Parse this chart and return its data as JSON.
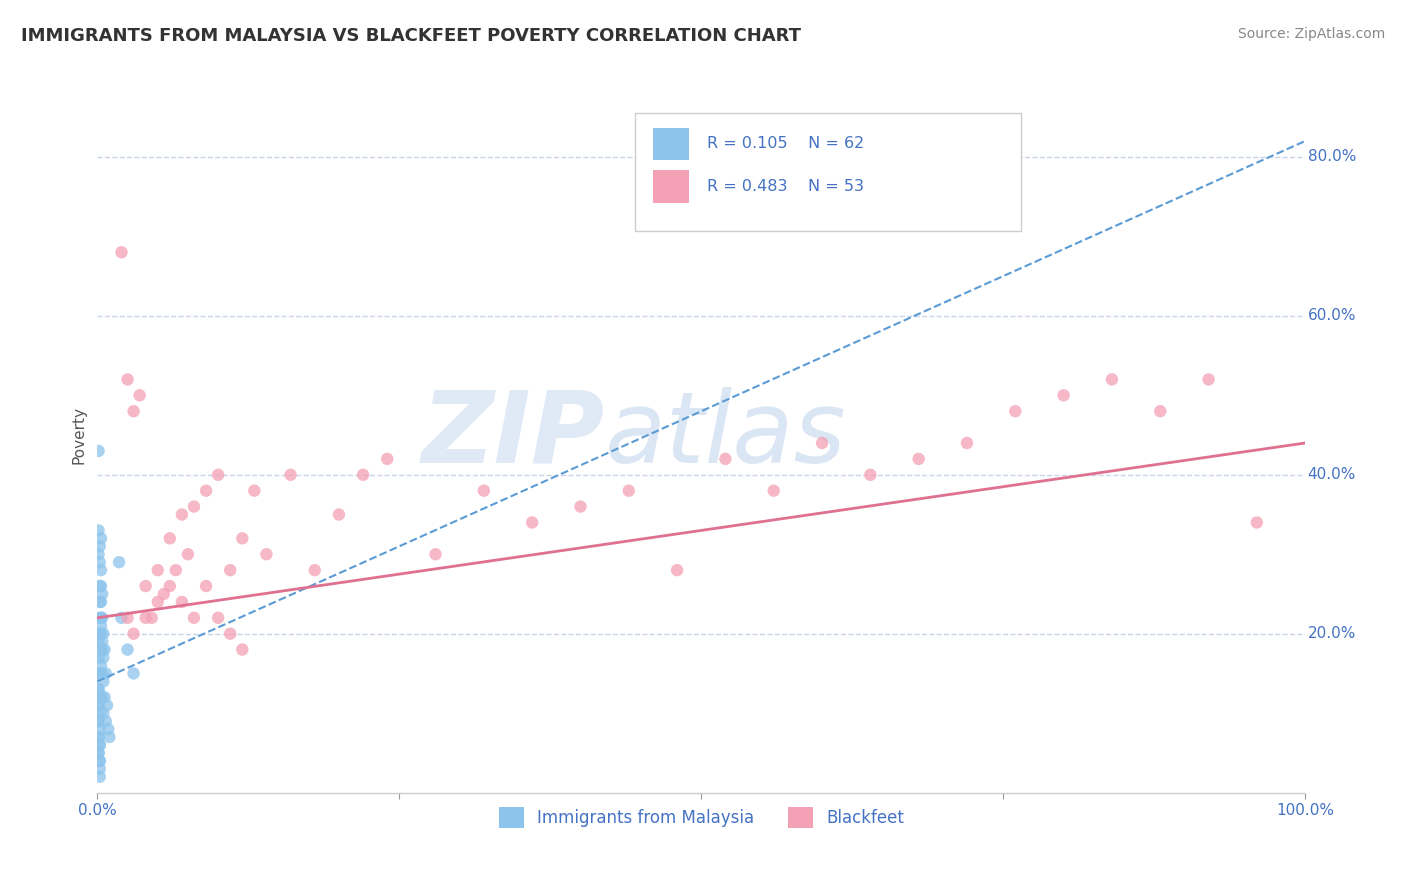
{
  "title": "IMMIGRANTS FROM MALAYSIA VS BLACKFEET POVERTY CORRELATION CHART",
  "source": "Source: ZipAtlas.com",
  "ylabel": "Poverty",
  "xlim": [
    0,
    1.0
  ],
  "ylim": [
    0,
    0.9
  ],
  "ytick_positions": [
    0.2,
    0.4,
    0.6,
    0.8
  ],
  "ytick_labels": [
    "20.0%",
    "40.0%",
    "60.0%",
    "80.0%"
  ],
  "legend1_r": "0.105",
  "legend1_n": "62",
  "legend2_r": "0.483",
  "legend2_n": "53",
  "color_blue": "#8dc4eb",
  "color_pink": "#f4a0b5",
  "color_blue_line": "#5b9bd5",
  "color_pink_line": "#e07090",
  "color_blue_text": "#4472c4",
  "watermark_zip": "ZIP",
  "watermark_atlas": "atlas",
  "background_color": "#ffffff",
  "grid_color": "#c8d4e8",
  "blue_trend_x0": 0.0,
  "blue_trend_y0": 0.14,
  "blue_trend_x1": 1.0,
  "blue_trend_y1": 0.82,
  "pink_trend_x0": 0.0,
  "pink_trend_y0": 0.22,
  "pink_trend_x1": 1.0,
  "pink_trend_y1": 0.44,
  "blue_x": [
    0.001,
    0.001,
    0.001,
    0.002,
    0.002,
    0.002,
    0.002,
    0.002,
    0.002,
    0.003,
    0.003,
    0.003,
    0.003,
    0.003,
    0.003,
    0.003,
    0.003,
    0.004,
    0.004,
    0.004,
    0.004,
    0.004,
    0.005,
    0.005,
    0.005,
    0.005,
    0.006,
    0.006,
    0.007,
    0.007,
    0.008,
    0.009,
    0.01,
    0.001,
    0.001,
    0.001,
    0.001,
    0.001,
    0.002,
    0.002,
    0.002,
    0.002,
    0.002,
    0.002,
    0.002,
    0.002,
    0.002,
    0.002,
    0.001,
    0.001,
    0.001,
    0.001,
    0.001,
    0.001,
    0.001,
    0.001,
    0.003,
    0.004,
    0.018,
    0.02,
    0.025,
    0.03
  ],
  "blue_y": [
    0.43,
    0.33,
    0.3,
    0.31,
    0.29,
    0.26,
    0.24,
    0.22,
    0.2,
    0.32,
    0.28,
    0.26,
    0.24,
    0.22,
    0.2,
    0.18,
    0.16,
    0.25,
    0.22,
    0.18,
    0.15,
    0.12,
    0.2,
    0.17,
    0.14,
    0.1,
    0.18,
    0.12,
    0.15,
    0.09,
    0.11,
    0.08,
    0.07,
    0.13,
    0.11,
    0.09,
    0.07,
    0.05,
    0.15,
    0.12,
    0.1,
    0.08,
    0.06,
    0.04,
    0.03,
    0.02,
    0.04,
    0.06,
    0.19,
    0.17,
    0.15,
    0.13,
    0.11,
    0.09,
    0.07,
    0.05,
    0.21,
    0.19,
    0.29,
    0.22,
    0.18,
    0.15
  ],
  "pink_x": [
    0.02,
    0.025,
    0.03,
    0.025,
    0.04,
    0.035,
    0.05,
    0.045,
    0.06,
    0.055,
    0.07,
    0.065,
    0.08,
    0.075,
    0.09,
    0.1,
    0.11,
    0.12,
    0.13,
    0.14,
    0.16,
    0.18,
    0.2,
    0.22,
    0.24,
    0.28,
    0.32,
    0.36,
    0.4,
    0.44,
    0.48,
    0.52,
    0.56,
    0.6,
    0.64,
    0.68,
    0.72,
    0.76,
    0.8,
    0.84,
    0.88,
    0.92,
    0.96,
    0.03,
    0.04,
    0.05,
    0.06,
    0.07,
    0.08,
    0.09,
    0.1,
    0.11,
    0.12
  ],
  "pink_y": [
    0.68,
    0.52,
    0.48,
    0.22,
    0.26,
    0.5,
    0.28,
    0.22,
    0.32,
    0.25,
    0.35,
    0.28,
    0.36,
    0.3,
    0.38,
    0.4,
    0.28,
    0.32,
    0.38,
    0.3,
    0.4,
    0.28,
    0.35,
    0.4,
    0.42,
    0.3,
    0.38,
    0.34,
    0.36,
    0.38,
    0.28,
    0.42,
    0.38,
    0.44,
    0.4,
    0.42,
    0.44,
    0.48,
    0.5,
    0.52,
    0.48,
    0.52,
    0.34,
    0.2,
    0.22,
    0.24,
    0.26,
    0.24,
    0.22,
    0.26,
    0.22,
    0.2,
    0.18
  ]
}
